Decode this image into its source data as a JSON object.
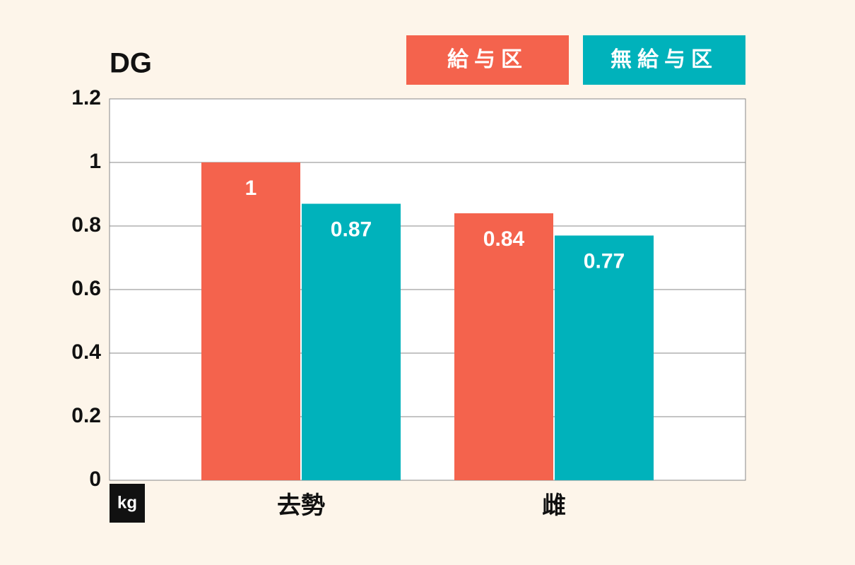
{
  "chart_data": {
    "type": "bar",
    "title": "DG",
    "y_unit": "kg",
    "categories": [
      "去勢",
      "雌"
    ],
    "series": [
      {
        "name": "給与区",
        "color": "#f4634d",
        "values": [
          1,
          0.84
        ]
      },
      {
        "name": "無給与区",
        "color": "#00b2bb",
        "values": [
          0.87,
          0.77
        ]
      }
    ],
    "ylim": [
      0,
      1.2
    ],
    "yticks": [
      0,
      0.2,
      0.4,
      0.6,
      0.8,
      1,
      1.2
    ],
    "grid": true,
    "legend": "top-right"
  }
}
